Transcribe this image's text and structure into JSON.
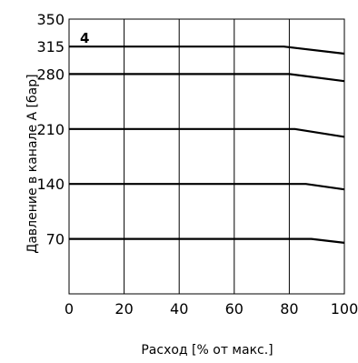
{
  "chart_data": {
    "type": "line",
    "title": "",
    "xlabel": "Расход [% от макс.]",
    "ylabel": "Давление в канале A [бар]",
    "xlim": [
      0,
      100
    ],
    "ylim": [
      0,
      350
    ],
    "x_ticks": [
      0,
      20,
      40,
      60,
      80,
      100
    ],
    "x_tick_labels": [
      "0",
      "20",
      "40",
      "60",
      "80",
      "100"
    ],
    "y_ticks": [
      70,
      140,
      210,
      280,
      315,
      350
    ],
    "y_tick_labels": [
      "70",
      "140",
      "210",
      "280",
      "315",
      "350"
    ],
    "x_grid": [
      20,
      40,
      60,
      80
    ],
    "annotation": "4",
    "series": [
      {
        "x": [
          0,
          88,
          100
        ],
        "y": [
          70,
          70,
          65
        ]
      },
      {
        "x": [
          0,
          86,
          100
        ],
        "y": [
          140,
          140,
          133
        ]
      },
      {
        "x": [
          0,
          82,
          100
        ],
        "y": [
          210,
          210,
          200
        ]
      },
      {
        "x": [
          0,
          80,
          100
        ],
        "y": [
          280,
          280,
          271
        ]
      },
      {
        "x": [
          0,
          78,
          100
        ],
        "y": [
          315,
          315,
          306
        ]
      }
    ]
  }
}
